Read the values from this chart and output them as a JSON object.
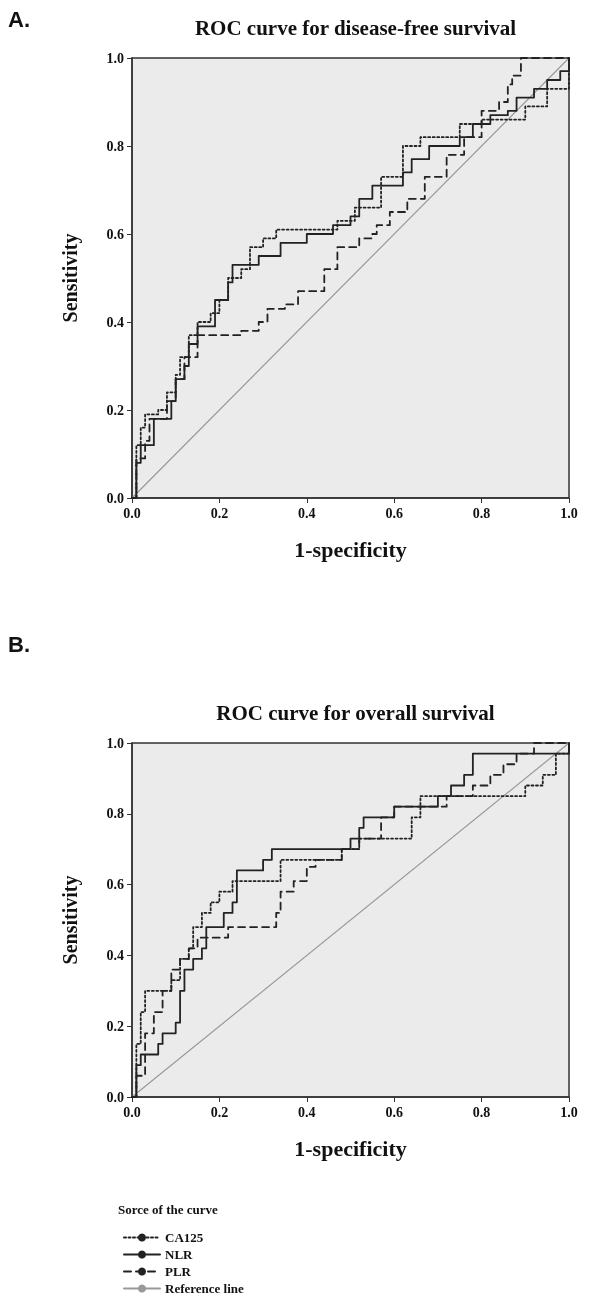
{
  "chart_data": [
    {
      "type": "step",
      "title": "ROC curve for disease-free survival",
      "xlabel": "1-specificity",
      "ylabel": "Sensitivity",
      "annotations": [
        "A."
      ],
      "xlim": [
        0,
        1
      ],
      "ylim": [
        0,
        1
      ],
      "xticks": [
        {
          "value": 0,
          "label": "0.0"
        },
        {
          "value": 0.2,
          "label": "0.2"
        },
        {
          "value": 0.4,
          "label": "0.4"
        },
        {
          "value": 0.6,
          "label": "0.6"
        },
        {
          "value": 0.8,
          "label": "0.8"
        },
        {
          "value": 1,
          "label": "1.0"
        }
      ],
      "yticks": [
        {
          "value": 0,
          "label": "0.0"
        },
        {
          "value": 0.2,
          "label": "0.2"
        },
        {
          "value": 0.4,
          "label": "0.4"
        },
        {
          "value": 0.6,
          "label": "0.6"
        },
        {
          "value": 0.8,
          "label": "0.8"
        },
        {
          "value": 1,
          "label": "1.0"
        }
      ],
      "grid": false,
      "legend": false,
      "marker": "none",
      "series": [
        {
          "color": "#222222",
          "line_style": "dotted",
          "x": [
            0,
            0.01,
            0.02,
            0.03,
            0.06,
            0.08,
            0.1,
            0.11,
            0.13,
            0.15,
            0.18,
            0.2,
            0.22,
            0.25,
            0.27,
            0.3,
            0.33,
            0.46,
            0.47,
            0.51,
            0.55,
            0.57,
            0.62,
            0.66,
            0.74,
            0.75,
            0.8,
            0.87,
            0.9,
            0.95,
            1.0
          ],
          "values": [
            0,
            0.12,
            0.16,
            0.19,
            0.2,
            0.24,
            0.28,
            0.32,
            0.37,
            0.4,
            0.42,
            0.45,
            0.5,
            0.52,
            0.57,
            0.59,
            0.61,
            0.61,
            0.63,
            0.66,
            0.66,
            0.73,
            0.8,
            0.82,
            0.82,
            0.85,
            0.86,
            0.86,
            0.89,
            0.93,
            1.0
          ]
        },
        {
          "color": "#222222",
          "line_style": "solid",
          "x": [
            0,
            0.01,
            0.02,
            0.05,
            0.08,
            0.09,
            0.1,
            0.12,
            0.13,
            0.15,
            0.18,
            0.19,
            0.21,
            0.22,
            0.23,
            0.28,
            0.29,
            0.33,
            0.34,
            0.39,
            0.4,
            0.45,
            0.46,
            0.5,
            0.52,
            0.55,
            0.59,
            0.62,
            0.64,
            0.67,
            0.68,
            0.75,
            0.78,
            0.82,
            0.86,
            0.88,
            0.92,
            0.95,
            0.98,
            1.0
          ],
          "values": [
            0,
            0.08,
            0.12,
            0.18,
            0.18,
            0.22,
            0.27,
            0.3,
            0.35,
            0.39,
            0.39,
            0.45,
            0.45,
            0.49,
            0.53,
            0.53,
            0.55,
            0.55,
            0.58,
            0.58,
            0.6,
            0.6,
            0.62,
            0.64,
            0.68,
            0.71,
            0.71,
            0.74,
            0.77,
            0.77,
            0.8,
            0.82,
            0.85,
            0.87,
            0.88,
            0.91,
            0.93,
            0.95,
            0.97,
            1.0
          ]
        },
        {
          "color": "#222222",
          "line_style": "dashed",
          "x": [
            0,
            0.01,
            0.03,
            0.04,
            0.08,
            0.1,
            0.12,
            0.15,
            0.22,
            0.25,
            0.29,
            0.31,
            0.35,
            0.38,
            0.42,
            0.44,
            0.47,
            0.52,
            0.55,
            0.56,
            0.59,
            0.62,
            0.63,
            0.67,
            0.72,
            0.76,
            0.8,
            0.84,
            0.86,
            0.87,
            0.89,
            1.0
          ],
          "values": [
            0,
            0.09,
            0.13,
            0.18,
            0.22,
            0.27,
            0.32,
            0.37,
            0.37,
            0.38,
            0.4,
            0.43,
            0.44,
            0.47,
            0.47,
            0.52,
            0.57,
            0.59,
            0.6,
            0.62,
            0.65,
            0.65,
            0.68,
            0.73,
            0.78,
            0.82,
            0.88,
            0.9,
            0.94,
            0.96,
            1.0,
            1.0
          ]
        },
        {
          "type": "line",
          "color": "#999999",
          "line_style": "solid",
          "x": [
            0,
            1
          ],
          "values": [
            0,
            1
          ]
        }
      ]
    },
    {
      "type": "step",
      "title": "ROC curve for overall survival",
      "xlabel": "1-specificity",
      "ylabel": "Sensitivity",
      "annotations": [
        "B."
      ],
      "legend_title": "Sorce of the curve",
      "xlim": [
        0,
        1
      ],
      "ylim": [
        0,
        1
      ],
      "xticks": [
        {
          "value": 0,
          "label": "0.0"
        },
        {
          "value": 0.2,
          "label": "0.2"
        },
        {
          "value": 0.4,
          "label": "0.4"
        },
        {
          "value": 0.6,
          "label": "0.6"
        },
        {
          "value": 0.8,
          "label": "0.8"
        },
        {
          "value": 1,
          "label": "1.0"
        }
      ],
      "yticks": [
        {
          "value": 0,
          "label": "0.0"
        },
        {
          "value": 0.2,
          "label": "0.2"
        },
        {
          "value": 0.4,
          "label": "0.4"
        },
        {
          "value": 0.6,
          "label": "0.6"
        },
        {
          "value": 0.8,
          "label": "0.8"
        },
        {
          "value": 1,
          "label": "1.0"
        }
      ],
      "grid": false,
      "legend": "bottom left",
      "marker": "none",
      "series": [
        {
          "name": "CA125",
          "color": "#222222",
          "line_style": "dotted",
          "x": [
            0,
            0.01,
            0.02,
            0.03,
            0.08,
            0.09,
            0.11,
            0.13,
            0.14,
            0.16,
            0.18,
            0.2,
            0.23,
            0.33,
            0.34,
            0.47,
            0.48,
            0.52,
            0.62,
            0.64,
            0.66,
            0.88,
            0.9,
            0.94,
            0.97,
            1.0
          ],
          "values": [
            0,
            0.15,
            0.24,
            0.3,
            0.3,
            0.33,
            0.39,
            0.42,
            0.48,
            0.52,
            0.55,
            0.58,
            0.61,
            0.61,
            0.67,
            0.67,
            0.7,
            0.73,
            0.73,
            0.79,
            0.85,
            0.85,
            0.88,
            0.91,
            0.97,
            1.0
          ]
        },
        {
          "name": "NLR",
          "color": "#222222",
          "line_style": "solid",
          "x": [
            0,
            0.01,
            0.02,
            0.05,
            0.06,
            0.07,
            0.09,
            0.1,
            0.11,
            0.12,
            0.14,
            0.16,
            0.17,
            0.2,
            0.21,
            0.23,
            0.24,
            0.29,
            0.3,
            0.32,
            0.48,
            0.5,
            0.52,
            0.53,
            0.58,
            0.6,
            0.7,
            0.73,
            0.76,
            0.78,
            0.98,
            1.0
          ],
          "values": [
            0,
            0.09,
            0.12,
            0.12,
            0.15,
            0.18,
            0.18,
            0.21,
            0.3,
            0.36,
            0.39,
            0.42,
            0.48,
            0.48,
            0.52,
            0.55,
            0.64,
            0.64,
            0.67,
            0.7,
            0.7,
            0.73,
            0.76,
            0.79,
            0.79,
            0.82,
            0.85,
            0.88,
            0.91,
            0.97,
            0.97,
            1.0
          ]
        },
        {
          "name": "PLR",
          "color": "#222222",
          "line_style": "dashed",
          "x": [
            0,
            0.01,
            0.03,
            0.05,
            0.07,
            0.09,
            0.11,
            0.13,
            0.15,
            0.2,
            0.22,
            0.29,
            0.33,
            0.34,
            0.37,
            0.4,
            0.42,
            0.45,
            0.48,
            0.52,
            0.57,
            0.6,
            0.7,
            0.72,
            0.78,
            0.82,
            0.85,
            0.88,
            0.92,
            1.0
          ],
          "values": [
            0,
            0.06,
            0.18,
            0.24,
            0.3,
            0.36,
            0.39,
            0.42,
            0.45,
            0.45,
            0.48,
            0.48,
            0.52,
            0.58,
            0.61,
            0.65,
            0.67,
            0.67,
            0.7,
            0.73,
            0.79,
            0.82,
            0.82,
            0.85,
            0.88,
            0.91,
            0.94,
            0.97,
            1.0,
            1.0
          ]
        },
        {
          "name": "Reference line",
          "type": "line",
          "color": "#999999",
          "line_style": "solid",
          "x": [
            0,
            1
          ],
          "values": [
            0,
            1
          ]
        }
      ]
    }
  ]
}
